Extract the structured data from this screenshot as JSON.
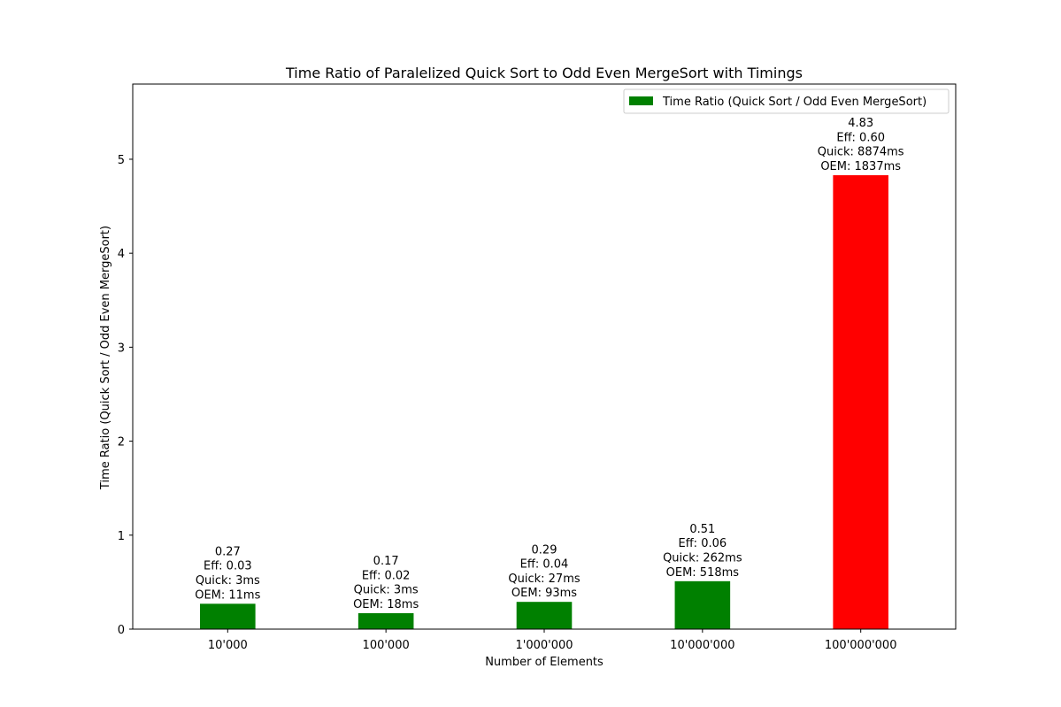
{
  "chart_data": {
    "type": "bar",
    "title": "Time Ratio of Paralelized Quick Sort to Odd Even MergeSort with Timings",
    "xlabel": "Number of Elements",
    "ylabel": "Time Ratio (Quick Sort / Odd Even MergeSort)",
    "categories": [
      "10'000",
      "100'000",
      "1'000'000",
      "10'000'000",
      "100'000'000"
    ],
    "series": [
      {
        "name": "Time Ratio (Quick Sort / Odd Even MergeSort)",
        "values": [
          0.27,
          0.17,
          0.29,
          0.51,
          4.83
        ]
      }
    ],
    "bar_colors": [
      "#008000",
      "#008000",
      "#008000",
      "#008000",
      "#ff0000"
    ],
    "annotations": [
      [
        "0.27",
        "Eff: 0.03",
        "Quick: 3ms",
        "OEM: 11ms"
      ],
      [
        "0.17",
        "Eff: 0.02",
        "Quick: 3ms",
        "OEM: 18ms"
      ],
      [
        "0.29",
        "Eff: 0.04",
        "Quick: 27ms",
        "OEM: 93ms"
      ],
      [
        "0.51",
        "Eff: 0.06",
        "Quick: 262ms",
        "OEM: 518ms"
      ],
      [
        "4.83",
        "Eff: 0.60",
        "Quick: 8874ms",
        "OEM: 1837ms"
      ]
    ],
    "ylim": [
      0,
      5.8
    ],
    "yticks": [
      0,
      1,
      2,
      3,
      4,
      5
    ],
    "legend_position": "top-right",
    "legend_color": "#008000",
    "grid": false
  }
}
